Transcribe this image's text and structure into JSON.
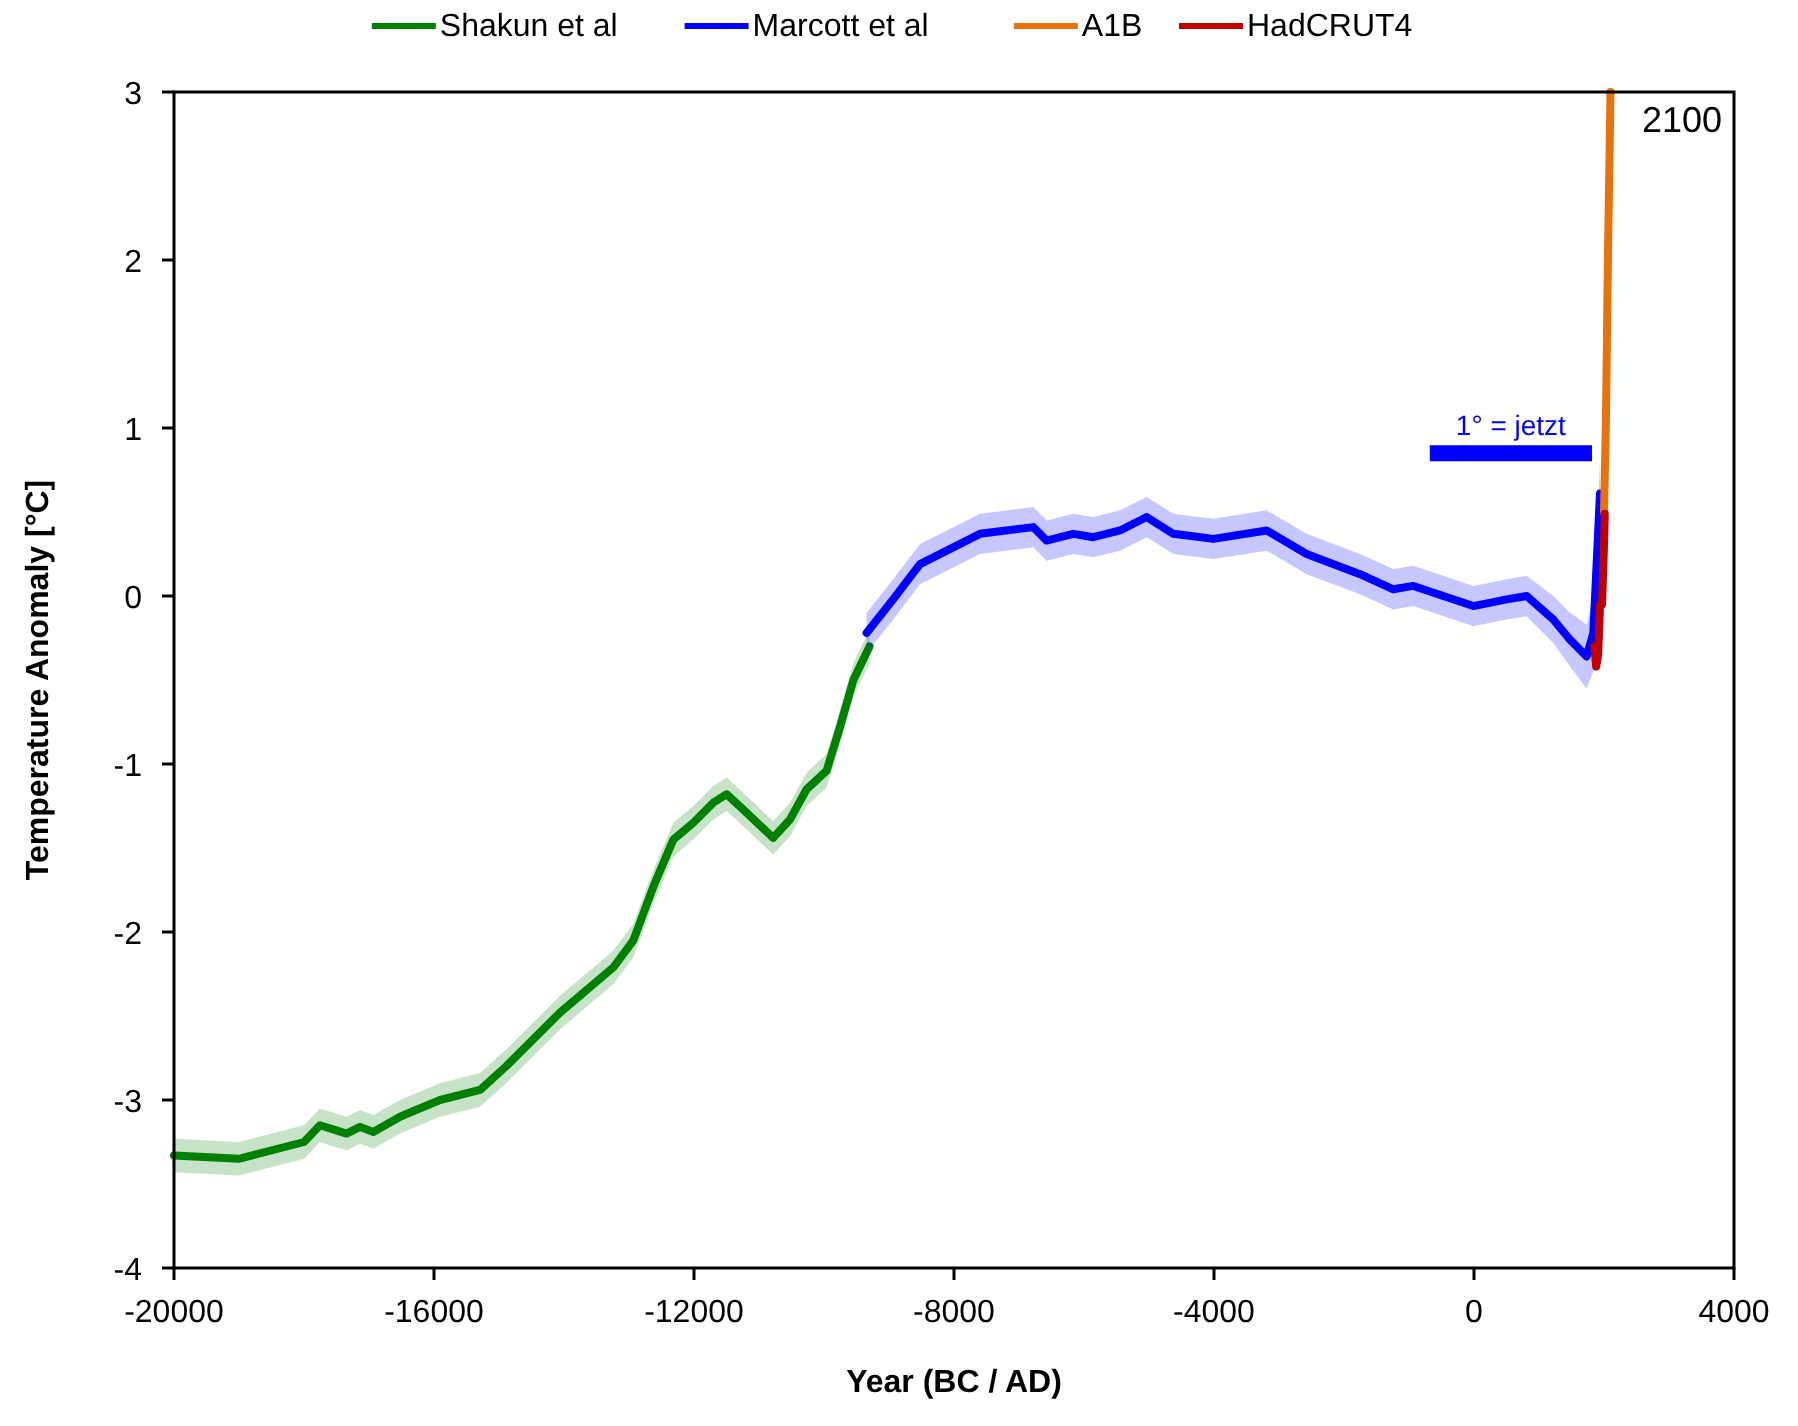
{
  "chart_data": {
    "type": "line",
    "xlabel": "Year (BC / AD)",
    "ylabel": "Temperature Anomaly [°C]",
    "xlim": [
      -20000,
      4000
    ],
    "xticks": [
      -20000,
      -16000,
      -12000,
      -8000,
      -4000,
      0,
      4000
    ],
    "ylim": [
      -4,
      3
    ],
    "yticks": [
      -4,
      -3,
      -2,
      -1,
      0,
      1,
      2,
      3
    ],
    "grid": false,
    "legend": "top",
    "line_style": "solid",
    "marker": "none",
    "series": [
      {
        "name": "Shakun et al",
        "color": "#008000",
        "x": [
          -20000,
          -19000,
          -18000,
          -17754,
          -17345,
          -17138,
          -16933,
          -16523,
          -15908,
          -15292,
          -14892,
          -14062,
          -13240,
          -12933,
          -12625,
          -12318,
          -12010,
          -11702,
          -11497,
          -11190,
          -10782,
          -10523,
          -10267,
          -9960,
          -9754,
          -9548,
          -9300
        ],
        "values": [
          -3.33,
          -3.35,
          -3.25,
          -3.15,
          -3.2,
          -3.16,
          -3.19,
          -3.1,
          -3.0,
          -2.94,
          -2.8,
          -2.48,
          -2.21,
          -2.05,
          -1.73,
          -1.45,
          -1.35,
          -1.23,
          -1.18,
          -1.29,
          -1.44,
          -1.33,
          -1.15,
          -1.04,
          -0.78,
          -0.5,
          -0.3
        ],
        "lower": [
          -3.43,
          -3.45,
          -3.35,
          -3.25,
          -3.3,
          -3.26,
          -3.29,
          -3.2,
          -3.1,
          -3.04,
          -2.9,
          -2.58,
          -2.31,
          -2.15,
          -1.83,
          -1.55,
          -1.45,
          -1.33,
          -1.28,
          -1.39,
          -1.54,
          -1.43,
          -1.25,
          -1.14,
          -0.88,
          -0.6,
          -0.4
        ],
        "upper": [
          -3.23,
          -3.25,
          -3.15,
          -3.05,
          -3.1,
          -3.06,
          -3.09,
          -3.0,
          -2.9,
          -2.84,
          -2.7,
          -2.38,
          -2.11,
          -1.95,
          -1.63,
          -1.35,
          -1.25,
          -1.13,
          -1.08,
          -1.19,
          -1.34,
          -1.23,
          -1.05,
          -0.94,
          -0.68,
          -0.4,
          -0.2
        ]
      },
      {
        "name": "Marcott et al",
        "color": "#0000ff",
        "x": [
          -9345,
          -8935,
          -8523,
          -7600,
          -6780,
          -6575,
          -6165,
          -5857,
          -5446,
          -5036,
          -4625,
          -4010,
          -3190,
          -2575,
          -1754,
          -1241,
          -933,
          -10,
          502,
          810,
          1220,
          1477,
          1733,
          1836,
          1938
        ],
        "values": [
          -0.22,
          -0.02,
          0.19,
          0.37,
          0.41,
          0.33,
          0.37,
          0.35,
          0.39,
          0.47,
          0.37,
          0.34,
          0.39,
          0.25,
          0.13,
          0.04,
          0.06,
          -0.06,
          -0.02,
          0.0,
          -0.14,
          -0.26,
          -0.36,
          -0.22,
          0.61
        ],
        "lower": [
          -0.34,
          -0.14,
          0.07,
          0.25,
          0.29,
          0.21,
          0.25,
          0.23,
          0.27,
          0.35,
          0.25,
          0.22,
          0.27,
          0.13,
          0.01,
          -0.08,
          -0.06,
          -0.18,
          -0.14,
          -0.12,
          -0.28,
          -0.42,
          -0.55,
          -0.45,
          0.4
        ],
        "upper": [
          -0.1,
          0.1,
          0.31,
          0.49,
          0.53,
          0.45,
          0.49,
          0.47,
          0.51,
          0.59,
          0.49,
          0.46,
          0.51,
          0.37,
          0.25,
          0.16,
          0.18,
          0.06,
          0.1,
          0.12,
          0.0,
          -0.1,
          -0.17,
          0.0,
          0.8
        ]
      },
      {
        "name": "A1B",
        "color": "#e8720c",
        "x": [
          2000,
          2030,
          2060,
          2100
        ],
        "values": [
          0.5,
          1.05,
          2.0,
          3.0
        ]
      },
      {
        "name": "HadCRUT4",
        "color": "#c00000",
        "x": [
          1850,
          1880,
          1910,
          1940,
          1970,
          2000,
          2012
        ],
        "values": [
          -0.3,
          -0.42,
          -0.35,
          -0.05,
          -0.05,
          0.3,
          0.49
        ]
      },
      {
        "name": "1° = jetzt",
        "type": "step",
        "color": "#0000ff",
        "x": [
          -680,
          1815
        ],
        "values": [
          0.85,
          0.85
        ]
      }
    ],
    "annotations": [
      "2100"
    ]
  }
}
